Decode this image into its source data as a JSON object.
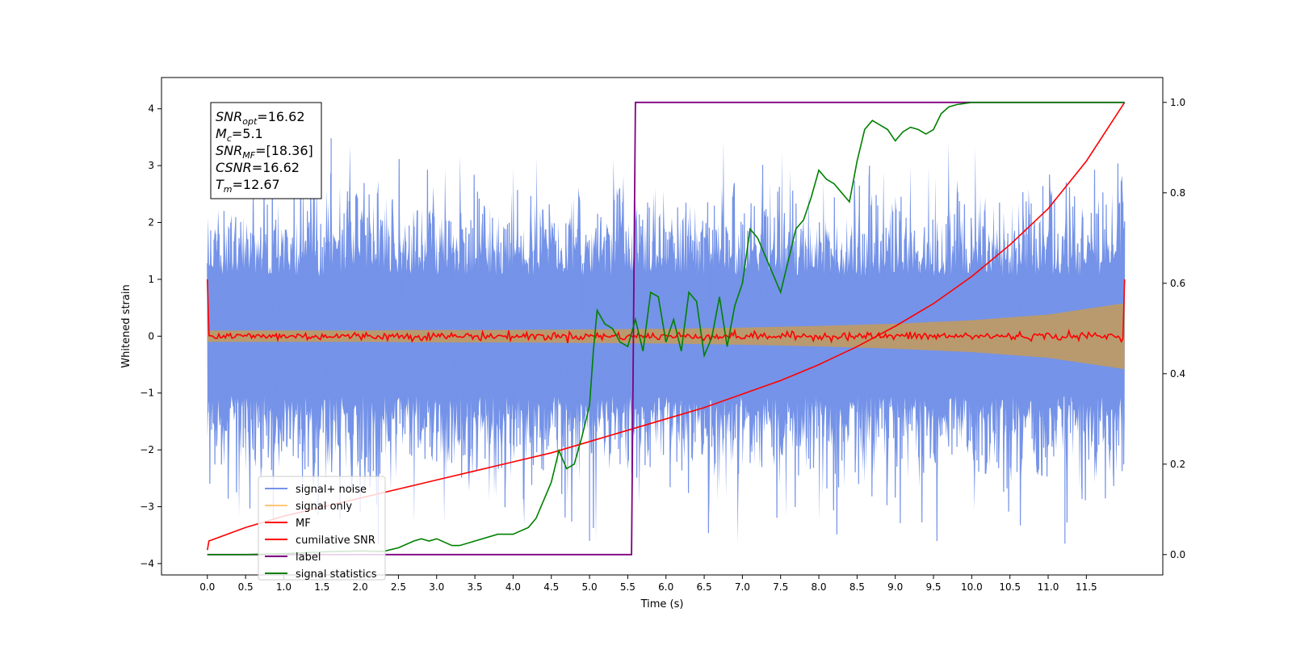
{
  "chart_data": {
    "type": "line",
    "title": "",
    "xlabel": "Time (s)",
    "ylabel_left": "Whitened strain",
    "ylabel_right": "",
    "xlim": [
      -0.6,
      12.5
    ],
    "ylim_left": [
      -4.2,
      4.55
    ],
    "ylim_right": [
      -0.045,
      1.055
    ],
    "x_ticks": [
      0.0,
      0.5,
      1.0,
      1.5,
      2.0,
      2.5,
      3.0,
      3.5,
      4.0,
      4.5,
      5.0,
      5.5,
      6.0,
      6.5,
      7.0,
      7.5,
      8.0,
      8.5,
      9.0,
      9.5,
      10.0,
      10.5,
      11.0,
      11.5
    ],
    "x_tick_labels": [
      "0.0",
      "0.5",
      "1.0",
      "1.5",
      "2.0",
      "2.5",
      "3.0",
      "3.5",
      "4.0",
      "4.5",
      "5.0",
      "5.5",
      "6.0",
      "6.5",
      "7.0",
      "7.5",
      "8.0",
      "8.5",
      "9.0",
      "9.5",
      "10.0",
      "10.5",
      "11.0",
      "11.5"
    ],
    "y_left_ticks": [
      -4,
      -3,
      -2,
      -1,
      0,
      1,
      2,
      3,
      4
    ],
    "y_left_tick_labels": [
      "−4",
      "−3",
      "−2",
      "−1",
      "0",
      "1",
      "2",
      "3",
      "4"
    ],
    "y_right_ticks": [
      0.0,
      0.2,
      0.4,
      0.6,
      0.8,
      1.0
    ],
    "y_right_tick_labels": [
      "0.0",
      "0.2",
      "0.4",
      "0.6",
      "0.8",
      "1.0"
    ],
    "grid": false,
    "legend_position": "lower-left",
    "legend": [
      {
        "label": "signal+ noise",
        "color": "#7593e8"
      },
      {
        "label": "signal only",
        "color": "#ffc878"
      },
      {
        "label": "MF",
        "color": "#ff0000"
      },
      {
        "label": "cumilative SNR",
        "color": "#ff0000"
      },
      {
        "label": "label",
        "color": "#800080"
      },
      {
        "label": "signal statistics",
        "color": "#008000"
      }
    ],
    "annotation": {
      "lines": [
        {
          "main": "SNR",
          "sub": "opt",
          "value": "=16.62"
        },
        {
          "main": "M",
          "sub": "c",
          "value": "=5.1"
        },
        {
          "main": "SNR",
          "sub": "MF",
          "value": "=[18.36]"
        },
        {
          "main": "CSNR",
          "sub": "",
          "value": "=16.62"
        },
        {
          "main": "T",
          "sub": "m",
          "value": "=12.67"
        }
      ]
    },
    "series": {
      "signal_noise": {
        "axis": "left",
        "x_range": [
          0.0,
          12.0
        ],
        "typical_envelope": [
          -1.4,
          1.4
        ],
        "max": 3.48,
        "min": -3.65,
        "color": "#7593e8"
      },
      "signal_only": {
        "axis": "left",
        "x_envelope": [
          0.0,
          1.0,
          2.0,
          3.0,
          4.0,
          5.0,
          6.0,
          7.0,
          8.0,
          9.0,
          10.0,
          11.0,
          12.0
        ],
        "amplitude": [
          0.1,
          0.1,
          0.1,
          0.11,
          0.11,
          0.12,
          0.13,
          0.15,
          0.18,
          0.22,
          0.28,
          0.38,
          0.58
        ],
        "color": "#b99a6e"
      },
      "MF": {
        "axis": "left",
        "x_range": [
          0.0,
          12.0
        ],
        "start": 1.0,
        "end": 1.0,
        "noise_amplitude": 0.05,
        "color": "#ff0000"
      },
      "cumulative_snr": {
        "axis": "right",
        "x": [
          0.0,
          0.02,
          0.5,
          1.0,
          1.5,
          2.0,
          2.5,
          3.0,
          3.5,
          4.0,
          4.5,
          5.0,
          5.5,
          6.0,
          6.5,
          7.0,
          7.5,
          8.0,
          8.5,
          9.0,
          9.5,
          10.0,
          10.5,
          11.0,
          11.5,
          12.0
        ],
        "y": [
          0.01,
          0.03,
          0.06,
          0.085,
          0.105,
          0.125,
          0.145,
          0.165,
          0.185,
          0.205,
          0.225,
          0.25,
          0.275,
          0.3,
          0.325,
          0.355,
          0.385,
          0.42,
          0.46,
          0.505,
          0.555,
          0.615,
          0.685,
          0.765,
          0.87,
          1.0
        ],
        "color": "#ff0000"
      },
      "label": {
        "axis": "right",
        "x": [
          0.0,
          5.55,
          5.6,
          12.0
        ],
        "y": [
          0.0,
          0.0,
          1.0,
          1.0
        ],
        "color": "#800080"
      },
      "signal_statistics": {
        "axis": "right",
        "x": [
          0.0,
          0.5,
          1.0,
          1.5,
          2.0,
          2.3,
          2.5,
          2.7,
          2.8,
          2.9,
          3.0,
          3.2,
          3.3,
          3.5,
          3.8,
          4.0,
          4.2,
          4.3,
          4.4,
          4.5,
          4.6,
          4.7,
          4.8,
          4.9,
          5.0,
          5.05,
          5.1,
          5.2,
          5.3,
          5.4,
          5.5,
          5.6,
          5.7,
          5.8,
          5.9,
          6.0,
          6.1,
          6.2,
          6.3,
          6.4,
          6.5,
          6.6,
          6.7,
          6.8,
          6.9,
          7.0,
          7.1,
          7.2,
          7.3,
          7.4,
          7.5,
          7.6,
          7.7,
          7.8,
          7.9,
          8.0,
          8.1,
          8.2,
          8.3,
          8.4,
          8.5,
          8.6,
          8.7,
          8.8,
          8.9,
          9.0,
          9.1,
          9.2,
          9.3,
          9.4,
          9.5,
          9.6,
          9.7,
          9.8,
          10.0,
          10.5,
          11.0,
          11.5,
          12.0
        ],
        "y": [
          0.0,
          0.0,
          0.002,
          0.006,
          0.008,
          0.007,
          0.015,
          0.03,
          0.035,
          0.03,
          0.035,
          0.02,
          0.02,
          0.03,
          0.045,
          0.045,
          0.06,
          0.08,
          0.12,
          0.16,
          0.23,
          0.19,
          0.2,
          0.26,
          0.33,
          0.45,
          0.54,
          0.51,
          0.5,
          0.47,
          0.46,
          0.52,
          0.45,
          0.58,
          0.57,
          0.47,
          0.52,
          0.45,
          0.58,
          0.56,
          0.44,
          0.48,
          0.57,
          0.46,
          0.55,
          0.6,
          0.72,
          0.7,
          0.66,
          0.62,
          0.58,
          0.65,
          0.72,
          0.74,
          0.79,
          0.85,
          0.83,
          0.82,
          0.8,
          0.78,
          0.87,
          0.94,
          0.96,
          0.95,
          0.94,
          0.915,
          0.935,
          0.945,
          0.94,
          0.93,
          0.94,
          0.975,
          0.99,
          0.995,
          1.0,
          1.0,
          1.0,
          1.0,
          1.0
        ],
        "color": "#008000"
      }
    }
  }
}
